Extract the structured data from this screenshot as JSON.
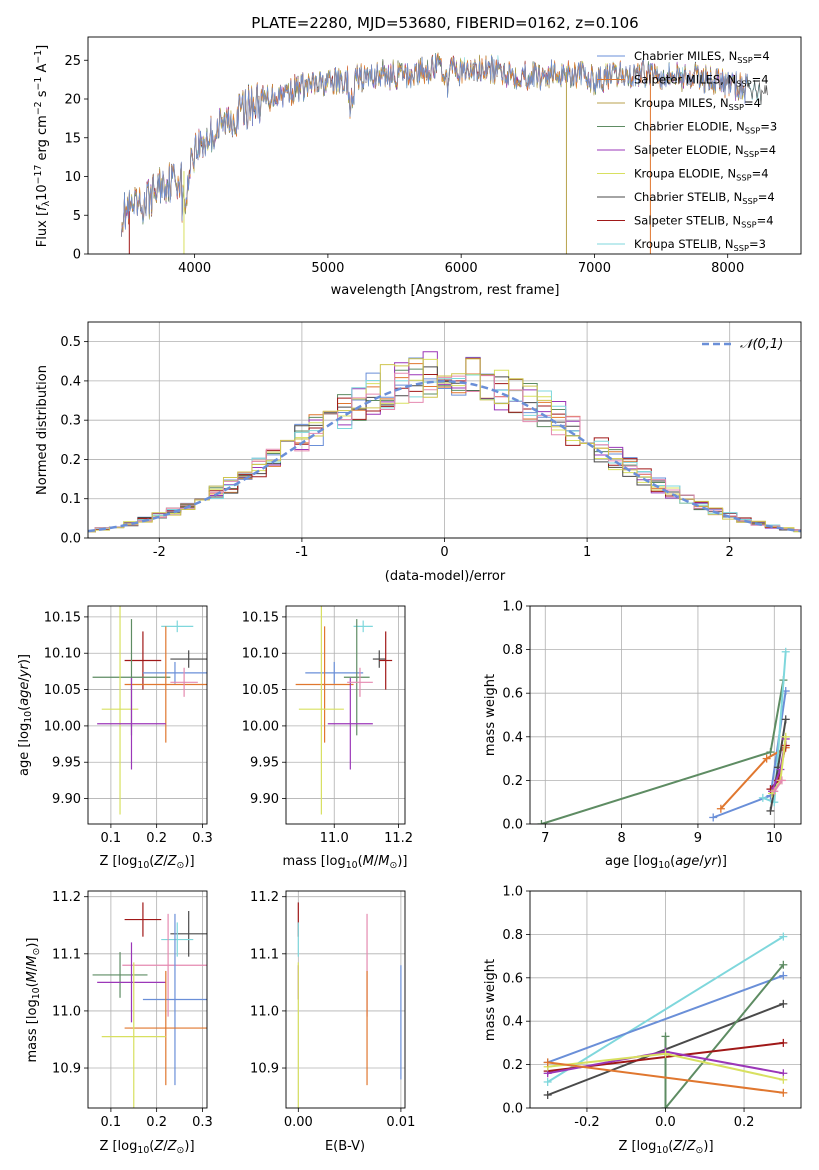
{
  "figure": {
    "title": "PLATE=2280, MJD=53680, FIBERID=0162, z=0.106"
  },
  "colors": {
    "blue": "#6a8fd8",
    "orange": "#e0772f",
    "olive": "#b8a24c",
    "green": "#5e8c63",
    "purple": "#9b37b8",
    "yellow": "#d8e060",
    "dark": "#4a4a4a",
    "red": "#a01818",
    "cyan": "#7fd7dc",
    "pink": "#e58ab0",
    "gold": "#cfc54f",
    "grid": "#b0b0b0"
  },
  "chart_data": [
    {
      "id": "spectrum",
      "type": "line",
      "title": "PLATE=2280, MJD=53680, FIBERID=0162, z=0.106",
      "xlabel": "wavelength [Angstrom, rest frame]",
      "ylabel": "Flux [f_λ10^-17 erg cm^-2 s^-1 A^-1]",
      "xlim": [
        3200,
        8550
      ],
      "ylim": [
        0,
        28
      ],
      "xticks": [
        4000,
        5000,
        6000,
        7000,
        8000
      ],
      "yticks": [
        0,
        5,
        10,
        15,
        20,
        25
      ],
      "grid": false,
      "legend_position": "right",
      "legend": [
        {
          "label": "Chabrier MILES, N_SSP=4",
          "color": "blue"
        },
        {
          "label": "Salpeter MILES, N_SSP=4",
          "color": "orange"
        },
        {
          "label": "Kroupa MILES, N_SSP=4",
          "color": "olive"
        },
        {
          "label": "Chabrier ELODIE, N_SSP=3",
          "color": "green"
        },
        {
          "label": "Salpeter ELODIE, N_SSP=4",
          "color": "purple"
        },
        {
          "label": "Kroupa ELODIE, N_SSP=4",
          "color": "yellow"
        },
        {
          "label": "Chabrier STELIB, N_SSP=4",
          "color": "dark"
        },
        {
          "label": "Salpeter STELIB, N_SSP=4",
          "color": "red"
        },
        {
          "label": "Kroupa STELIB, N_SSP=3",
          "color": "cyan"
        }
      ],
      "continuum": {
        "x": [
          3450,
          3600,
          3750,
          3900,
          4000,
          4200,
          4400,
          4600,
          4800,
          5000,
          5200,
          5400,
          5600,
          5800,
          6000,
          6200,
          6400,
          6600,
          6800,
          7000,
          7200,
          7400,
          7600,
          7800,
          8000,
          8200,
          8300
        ],
        "y": [
          5.2,
          6.0,
          9.0,
          10.0,
          13.5,
          16.5,
          19.0,
          20.5,
          21.5,
          22.0,
          22.5,
          23.2,
          23.0,
          24.2,
          23.5,
          23.8,
          23.2,
          23.0,
          23.5,
          22.5,
          23.0,
          23.5,
          23.0,
          22.8,
          22.0,
          21.0,
          20.5
        ]
      },
      "dips": [
        {
          "x": 3510,
          "y": 0,
          "color": "red"
        },
        {
          "x": 3920,
          "y": 0,
          "color": "yellow"
        },
        {
          "x": 6790,
          "y": 0,
          "color": "olive"
        },
        {
          "x": 7420,
          "y": 0,
          "color": "orange"
        }
      ]
    },
    {
      "id": "residuals",
      "type": "histogram",
      "xlabel": "(data-model)/error",
      "ylabel": "Normed distribution",
      "xlim": [
        -2.5,
        2.5
      ],
      "ylim": [
        0,
        0.55
      ],
      "xticks": [
        -2,
        -1,
        0,
        1,
        2
      ],
      "yticks": [
        0.0,
        0.1,
        0.2,
        0.3,
        0.4,
        0.5
      ],
      "grid": true,
      "bin_width": 0.1,
      "reference_curve": {
        "label": "N(0,1)",
        "mean": 0,
        "sigma": 1,
        "style": "dashed",
        "color": "blue"
      },
      "legend_position": "upper right"
    },
    {
      "id": "age_vs_Z",
      "type": "errorbar",
      "xlabel": "Z [log10(Z/Z☉)]",
      "ylabel": "age [log10(age/yr)]",
      "xlim": [
        0.05,
        0.31
      ],
      "ylim": [
        9.865,
        10.165
      ],
      "xticks": [
        0.1,
        0.2,
        0.3
      ],
      "yticks": [
        9.9,
        9.95,
        10.0,
        10.05,
        10.1,
        10.15
      ],
      "grid": true,
      "points": [
        {
          "color": "cyan",
          "x": 0.245,
          "xerr": 0.035,
          "y": 10.137,
          "yerr": 0.008
        },
        {
          "color": "dark",
          "x": 0.27,
          "xerr": 0.04,
          "y": 10.092,
          "yerr": 0.012
        },
        {
          "color": "red",
          "x": 0.17,
          "xerr": 0.04,
          "y": 10.09,
          "yerr": 0.04
        },
        {
          "color": "blue",
          "x": 0.24,
          "xerr": 0.07,
          "y": 10.073,
          "yerr": 0.015
        },
        {
          "color": "green",
          "x": 0.145,
          "xerr": 0.085,
          "y": 10.067,
          "yerr": 0.08
        },
        {
          "color": "orange",
          "x": 0.22,
          "xerr": 0.09,
          "y": 10.057,
          "yerr": 0.08
        },
        {
          "color": "yellow",
          "x": 0.12,
          "xerr": 0.04,
          "y": 10.023,
          "yerr": 0.145
        },
        {
          "color": "purple",
          "x": 0.145,
          "xerr": 0.075,
          "y": 10.003,
          "yerr": 0.063
        },
        {
          "color": "pink",
          "x": 0.26,
          "xerr": 0.03,
          "y": 10.06,
          "yerr": 0.02
        }
      ]
    },
    {
      "id": "age_vs_mass",
      "type": "errorbar",
      "xlabel": "mass [log10(M/M☉)]",
      "ylabel": "",
      "xlim": [
        10.85,
        11.22
      ],
      "ylim": [
        9.865,
        10.165
      ],
      "xticks": [
        11.0,
        11.2
      ],
      "yticks": [
        9.9,
        9.95,
        10.0,
        10.05,
        10.1,
        10.15
      ],
      "grid": true,
      "points": [
        {
          "color": "cyan",
          "x": 11.09,
          "xerr": 0.03,
          "y": 10.137,
          "yerr": 0.008
        },
        {
          "color": "dark",
          "x": 11.14,
          "xerr": 0.02,
          "y": 10.092,
          "yerr": 0.012
        },
        {
          "color": "red",
          "x": 11.16,
          "xerr": 0.02,
          "y": 10.09,
          "yerr": 0.04
        },
        {
          "color": "blue",
          "x": 11.0,
          "xerr": 0.09,
          "y": 10.073,
          "yerr": 0.015
        },
        {
          "color": "green",
          "x": 11.07,
          "xerr": 0.04,
          "y": 10.067,
          "yerr": 0.08
        },
        {
          "color": "orange",
          "x": 10.97,
          "xerr": 0.09,
          "y": 10.057,
          "yerr": 0.08
        },
        {
          "color": "yellow",
          "x": 10.96,
          "xerr": 0.07,
          "y": 10.023,
          "yerr": 0.145
        },
        {
          "color": "purple",
          "x": 11.05,
          "xerr": 0.07,
          "y": 10.003,
          "yerr": 0.063
        },
        {
          "color": "pink",
          "x": 11.08,
          "xerr": 0.04,
          "y": 10.06,
          "yerr": 0.02
        }
      ]
    },
    {
      "id": "mass_vs_Z",
      "type": "errorbar",
      "xlabel": "Z [log10(Z/Z☉)]",
      "ylabel": "mass [log10(M/M☉)]",
      "xlim": [
        0.05,
        0.31
      ],
      "ylim": [
        10.83,
        11.21
      ],
      "xticks": [
        0.1,
        0.2,
        0.3
      ],
      "yticks": [
        10.9,
        11.0,
        11.1,
        11.2
      ],
      "grid": true,
      "points": [
        {
          "color": "red",
          "x": 0.17,
          "xerr": 0.04,
          "y": 11.16,
          "yerr": 0.03
        },
        {
          "color": "dark",
          "x": 0.27,
          "xerr": 0.04,
          "y": 11.135,
          "yerr": 0.04
        },
        {
          "color": "cyan",
          "x": 0.245,
          "xerr": 0.035,
          "y": 11.125,
          "yerr": 0.03
        },
        {
          "color": "pink",
          "x": 0.225,
          "xerr": 0.1,
          "y": 11.08,
          "yerr": 0.09
        },
        {
          "color": "green",
          "x": 0.12,
          "xerr": 0.06,
          "y": 11.063,
          "yerr": 0.04
        },
        {
          "color": "purple",
          "x": 0.145,
          "xerr": 0.075,
          "y": 11.05,
          "yerr": 0.07
        },
        {
          "color": "blue",
          "x": 0.24,
          "xerr": 0.07,
          "y": 11.02,
          "yerr": 0.15
        },
        {
          "color": "orange",
          "x": 0.22,
          "xerr": 0.09,
          "y": 10.97,
          "yerr": 0.1
        },
        {
          "color": "yellow",
          "x": 0.15,
          "xerr": 0.07,
          "y": 10.955,
          "yerr": 0.13
        }
      ]
    },
    {
      "id": "mass_vs_EBV",
      "type": "errorbar",
      "xlabel": "E(B-V)",
      "ylabel": "",
      "xlim": [
        -0.0012,
        0.0104
      ],
      "ylim": [
        10.83,
        11.21
      ],
      "xticks": [
        0.0,
        0.01
      ],
      "yticks": [
        10.9,
        11.0,
        11.1,
        11.2
      ],
      "grid": true,
      "points": [
        {
          "color": "red",
          "x": 0.0,
          "xerr": 0.0,
          "y": 11.16,
          "yerr": 0.03
        },
        {
          "color": "cyan",
          "x": 0.0,
          "xerr": 0.0,
          "y": 11.125,
          "yerr": 0.03
        },
        {
          "color": "purple",
          "x": 0.0,
          "xerr": 0.0,
          "y": 11.05,
          "yerr": 0.03
        },
        {
          "color": "yellow",
          "x": 0.0,
          "xerr": 0.0,
          "y": 10.955,
          "yerr": 0.13
        },
        {
          "color": "pink",
          "x": 0.0067,
          "xerr": 0.0,
          "y": 11.08,
          "yerr": 0.09
        },
        {
          "color": "orange",
          "x": 0.0067,
          "xerr": 0.0,
          "y": 10.97,
          "yerr": 0.1
        },
        {
          "color": "blue",
          "x": 0.01,
          "xerr": 0.0,
          "y": 10.98,
          "yerr": 0.1
        }
      ]
    },
    {
      "id": "weight_vs_age",
      "type": "line",
      "xlabel": "age [log10(age/yr)]",
      "ylabel": "mass weight",
      "xlim": [
        6.8,
        10.35
      ],
      "ylim": [
        0,
        1
      ],
      "xticks": [
        7,
        8,
        9,
        10
      ],
      "yticks": [
        0.0,
        0.2,
        0.4,
        0.6,
        0.8,
        1.0
      ],
      "grid": true,
      "series": [
        {
          "color": "green",
          "x": [
            6.95,
            9.95,
            10.12
          ],
          "y": [
            0.0,
            0.33,
            0.66
          ]
        },
        {
          "color": "blue",
          "x": [
            9.2,
            9.95,
            10.15
          ],
          "y": [
            0.03,
            0.13,
            0.61
          ]
        },
        {
          "color": "orange",
          "x": [
            9.3,
            9.9,
            10.15
          ],
          "y": [
            0.07,
            0.3,
            0.35
          ]
        },
        {
          "color": "cyan",
          "x": [
            9.85,
            10.0,
            10.15
          ],
          "y": [
            0.12,
            0.1,
            0.79
          ]
        },
        {
          "color": "dark",
          "x": [
            9.95,
            10.05,
            10.15
          ],
          "y": [
            0.06,
            0.26,
            0.48
          ]
        },
        {
          "color": "red",
          "x": [
            9.95,
            10.05,
            10.15
          ],
          "y": [
            0.16,
            0.2,
            0.36
          ]
        },
        {
          "color": "purple",
          "x": [
            9.97,
            10.08,
            10.15
          ],
          "y": [
            0.15,
            0.25,
            0.39
          ]
        },
        {
          "color": "yellow",
          "x": [
            9.97,
            10.08,
            10.15
          ],
          "y": [
            0.14,
            0.2,
            0.4
          ]
        },
        {
          "color": "pink",
          "x": [
            10.0,
            10.1
          ],
          "y": [
            0.15,
            0.2
          ]
        }
      ]
    },
    {
      "id": "weight_vs_Z",
      "type": "line",
      "xlabel": "Z [log10(Z/Z☉)]",
      "ylabel": "mass weight",
      "xlim": [
        -0.345,
        0.345
      ],
      "ylim": [
        0,
        1
      ],
      "xticks": [
        -0.2,
        0.0,
        0.2
      ],
      "yticks": [
        0.0,
        0.2,
        0.4,
        0.6,
        0.8,
        1.0
      ],
      "grid": true,
      "series": [
        {
          "color": "cyan",
          "x": [
            -0.3,
            0.3
          ],
          "y": [
            0.12,
            0.79
          ]
        },
        {
          "color": "blue",
          "x": [
            -0.3,
            0.3
          ],
          "y": [
            0.21,
            0.61
          ]
        },
        {
          "color": "dark",
          "x": [
            -0.3,
            0.3
          ],
          "y": [
            0.06,
            0.48
          ]
        },
        {
          "color": "green",
          "x": [
            0.0,
            0.0,
            0.3
          ],
          "y": [
            0.33,
            0.0,
            0.66
          ]
        },
        {
          "color": "red",
          "x": [
            -0.3,
            0.3
          ],
          "y": [
            0.17,
            0.3
          ]
        },
        {
          "color": "purple",
          "x": [
            -0.3,
            0.0,
            0.3
          ],
          "y": [
            0.16,
            0.26,
            0.16
          ]
        },
        {
          "color": "yellow",
          "x": [
            -0.3,
            0.0,
            0.3
          ],
          "y": [
            0.19,
            0.25,
            0.13
          ]
        },
        {
          "color": "orange",
          "x": [
            -0.3,
            0.3
          ],
          "y": [
            0.21,
            0.07
          ]
        }
      ]
    }
  ]
}
